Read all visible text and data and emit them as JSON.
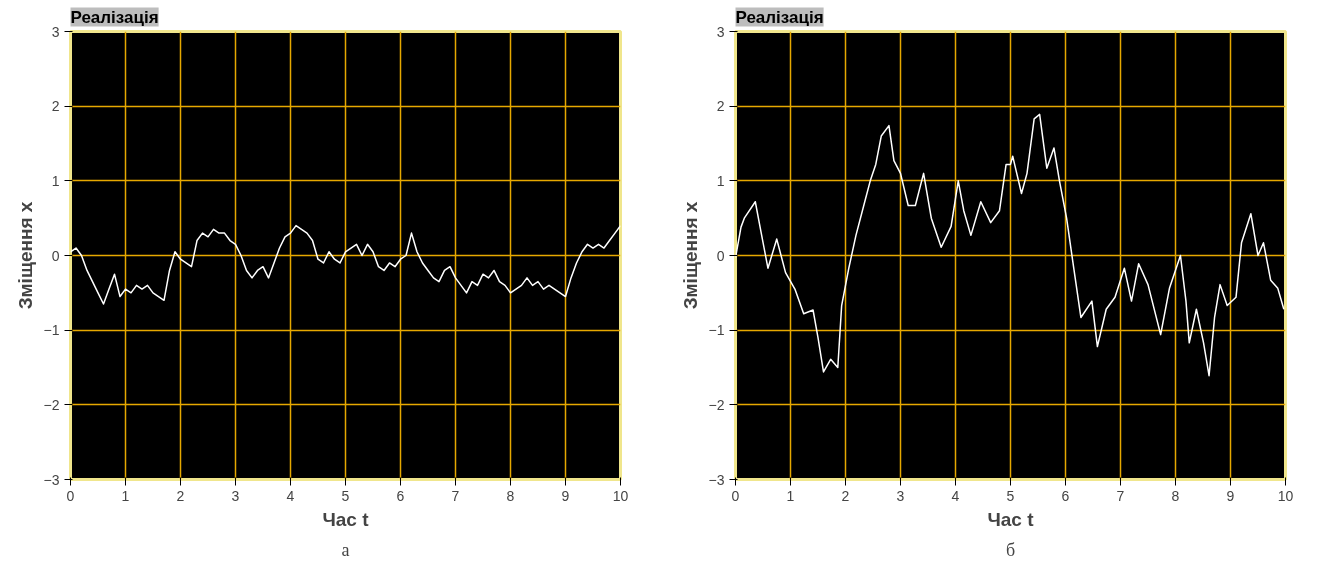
{
  "chart_data": [
    {
      "type": "line",
      "title": "Реалізація",
      "xlabel": "Час t",
      "ylabel": "Зміщення x",
      "annotations": [
        "а"
      ],
      "xlim": [
        0,
        10
      ],
      "ylim": [
        -3,
        3
      ],
      "xticks": [
        0,
        1,
        2,
        3,
        4,
        5,
        6,
        7,
        8,
        9,
        10
      ],
      "yticks": [
        -3,
        -2,
        -1,
        0,
        1,
        2,
        3
      ],
      "grid": true,
      "marker": "none",
      "line_style": "solid",
      "series": [
        {
          "color": "#ffffff",
          "x": [
            0,
            0.1,
            0.2,
            0.3,
            0.4,
            0.5,
            0.6,
            0.7,
            0.8,
            0.9,
            1.0,
            1.1,
            1.2,
            1.3,
            1.4,
            1.5,
            1.6,
            1.7,
            1.8,
            1.9,
            2.0,
            2.1,
            2.2,
            2.3,
            2.4,
            2.5,
            2.6,
            2.7,
            2.8,
            2.9,
            3.0,
            3.1,
            3.2,
            3.3,
            3.4,
            3.5,
            3.6,
            3.7,
            3.8,
            3.9,
            4.0,
            4.1,
            4.2,
            4.3,
            4.4,
            4.5,
            4.6,
            4.7,
            4.8,
            4.9,
            5.0,
            5.1,
            5.2,
            5.3,
            5.4,
            5.5,
            5.6,
            5.7,
            5.8,
            5.9,
            6.0,
            6.1,
            6.2,
            6.3,
            6.4,
            6.5,
            6.6,
            6.7,
            6.8,
            6.9,
            7.0,
            7.1,
            7.2,
            7.3,
            7.4,
            7.5,
            7.6,
            7.7,
            7.8,
            7.9,
            8.0,
            8.1,
            8.2,
            8.3,
            8.4,
            8.5,
            8.6,
            8.7,
            8.8,
            8.9,
            9.0,
            9.1,
            9.2,
            9.3,
            9.4,
            9.5,
            9.6,
            9.7,
            9.8,
            9.9,
            10
          ],
          "values": [
            0.05,
            0.1,
            0.0,
            -0.2,
            -0.35,
            -0.5,
            -0.65,
            -0.45,
            -0.25,
            -0.55,
            -0.45,
            -0.5,
            -0.4,
            -0.45,
            -0.4,
            -0.5,
            -0.55,
            -0.6,
            -0.2,
            0.05,
            -0.05,
            -0.1,
            -0.15,
            0.2,
            0.3,
            0.25,
            0.35,
            0.3,
            0.3,
            0.2,
            0.15,
            0.0,
            -0.2,
            -0.3,
            -0.2,
            -0.15,
            -0.3,
            -0.1,
            0.1,
            0.25,
            0.3,
            0.4,
            0.35,
            0.3,
            0.2,
            -0.05,
            -0.1,
            0.05,
            -0.05,
            -0.1,
            0.05,
            0.1,
            0.15,
            0.0,
            0.15,
            0.05,
            -0.15,
            -0.2,
            -0.1,
            -0.15,
            -0.05,
            0.0,
            0.3,
            0.05,
            -0.1,
            -0.2,
            -0.3,
            -0.35,
            -0.2,
            -0.15,
            -0.3,
            -0.4,
            -0.5,
            -0.35,
            -0.4,
            -0.25,
            -0.3,
            -0.2,
            -0.35,
            -0.4,
            -0.5,
            -0.45,
            -0.4,
            -0.3,
            -0.4,
            -0.35,
            -0.45,
            -0.4,
            -0.45,
            -0.5,
            -0.55,
            -0.3,
            -0.1,
            0.05,
            0.15,
            0.1,
            0.15,
            0.1,
            0.2,
            0.3,
            0.4
          ]
        }
      ]
    },
    {
      "type": "line",
      "title": "Реалізація",
      "xlabel": "Час t",
      "ylabel": "Зміщення x",
      "annotations": [
        "б"
      ],
      "xlim": [
        0,
        10
      ],
      "ylim": [
        -3,
        3
      ],
      "xticks": [
        0,
        1,
        2,
        3,
        4,
        5,
        6,
        7,
        8,
        9,
        10
      ],
      "yticks": [
        -3,
        -2,
        -1,
        0,
        1,
        2,
        3
      ],
      "grid": true,
      "marker": "none",
      "line_style": "solid",
      "series": [
        {
          "color": "#ffffff",
          "x": [
            0,
            0.1,
            0.16,
            0.36,
            0.46,
            0.59,
            0.75,
            0.91,
            1.08,
            1.24,
            1.41,
            1.5,
            1.6,
            1.73,
            1.86,
            1.93,
            2.06,
            2.19,
            2.35,
            2.45,
            2.55,
            2.65,
            2.79,
            2.88,
            3.0,
            3.14,
            3.27,
            3.42,
            3.56,
            3.74,
            3.92,
            4.05,
            4.15,
            4.28,
            4.46,
            4.64,
            4.8,
            4.92,
            5.0,
            5.04,
            5.2,
            5.3,
            5.43,
            5.53,
            5.66,
            5.79,
            5.89,
            6.02,
            6.15,
            6.28,
            6.48,
            6.58,
            6.74,
            6.9,
            7.07,
            7.2,
            7.33,
            7.5,
            7.73,
            7.89,
            8.09,
            8.19,
            8.25,
            8.38,
            8.51,
            8.61,
            8.71,
            8.81,
            8.94,
            9.1,
            9.2,
            9.37,
            9.5,
            9.6,
            9.73,
            9.86,
            9.97
          ],
          "values": [
            -0.03,
            0.38,
            0.5,
            0.72,
            0.33,
            -0.17,
            0.22,
            -0.23,
            -0.45,
            -0.78,
            -0.73,
            -1.1,
            -1.56,
            -1.39,
            -1.5,
            -0.67,
            -0.17,
            0.27,
            0.72,
            1.0,
            1.22,
            1.6,
            1.74,
            1.27,
            1.1,
            0.67,
            0.67,
            1.1,
            0.5,
            0.11,
            0.39,
            1.0,
            0.6,
            0.27,
            0.72,
            0.44,
            0.6,
            1.22,
            1.22,
            1.33,
            0.83,
            1.1,
            1.83,
            1.89,
            1.17,
            1.44,
            1.0,
            0.5,
            -0.17,
            -0.83,
            -0.61,
            -1.22,
            -0.72,
            -0.56,
            -0.17,
            -0.61,
            -0.11,
            -0.39,
            -1.06,
            -0.44,
            0.0,
            -0.61,
            -1.17,
            -0.72,
            -1.17,
            -1.61,
            -0.83,
            -0.39,
            -0.67,
            -0.56,
            0.17,
            0.56,
            0.0,
            0.17,
            -0.33,
            -0.44,
            -0.72
          ]
        }
      ]
    }
  ]
}
